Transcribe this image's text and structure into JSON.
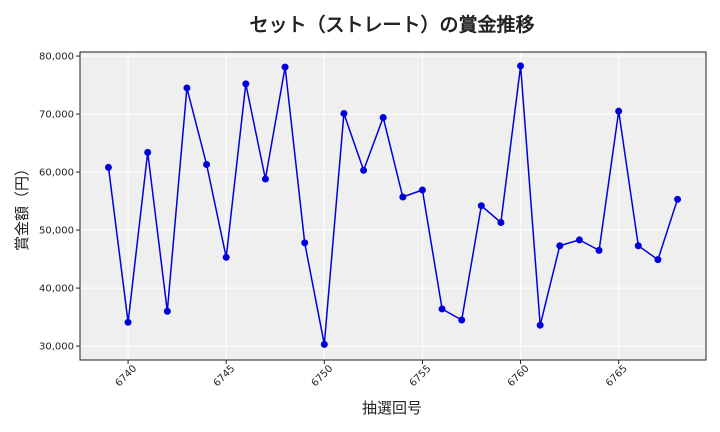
{
  "chart_data": {
    "type": "line",
    "title": "セット（ストレート）の賞金推移",
    "xlabel": "抽選回号",
    "ylabel": "賞金額（円）",
    "x": [
      6739,
      6740,
      6741,
      6742,
      6743,
      6744,
      6745,
      6746,
      6747,
      6748,
      6749,
      6750,
      6751,
      6752,
      6753,
      6754,
      6755,
      6756,
      6757,
      6758,
      6759,
      6760,
      6761,
      6762,
      6763,
      6764,
      6765,
      6766,
      6767,
      6768
    ],
    "series": [
      {
        "values": [
          60800,
          34100,
          63400,
          36000,
          74500,
          61300,
          45300,
          75200,
          58800,
          78100,
          47800,
          30300,
          70100,
          60300,
          69400,
          55700,
          56900,
          36400,
          34500,
          54200,
          51300,
          78300,
          33600,
          47300,
          48300,
          46500,
          70500,
          47300,
          44900,
          55300
        ]
      }
    ],
    "xticks": [
      6740,
      6745,
      6750,
      6755,
      6760,
      6765
    ],
    "yticks": [
      30000,
      40000,
      50000,
      60000,
      70000,
      80000
    ],
    "ytick_labels": [
      "30,000",
      "40,000",
      "50,000",
      "60,000",
      "70,000",
      "80,000"
    ],
    "xlim": [
      6737.55,
      6769.45
    ],
    "ylim": [
      27600,
      80700
    ],
    "grid": true,
    "colors": {
      "line": "#0000dd",
      "marker": "#0000dd",
      "plot_bg": "#efefef",
      "grid": "#ffffff",
      "axes": "#222222"
    }
  }
}
